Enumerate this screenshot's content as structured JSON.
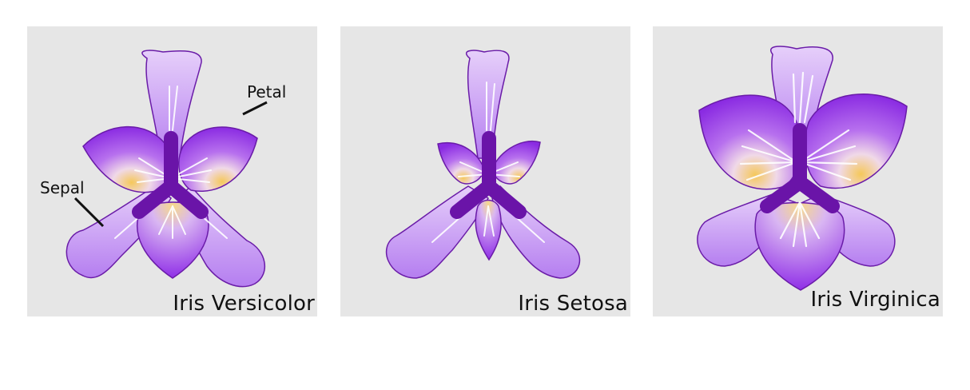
{
  "panels": [
    {
      "name": "Iris Versicolor",
      "callouts": {
        "petal": "Petal",
        "sepal": "Sepal"
      }
    },
    {
      "name": "Iris Setosa"
    },
    {
      "name": "Iris Virginica"
    }
  ],
  "colors": {
    "background": "#e6e6e6",
    "sepal": "#c9a0f5",
    "petal": "#9b40e8",
    "outline": "#6a1ca8",
    "style_arms": "#6a14a8",
    "center": "#f2c24a"
  }
}
